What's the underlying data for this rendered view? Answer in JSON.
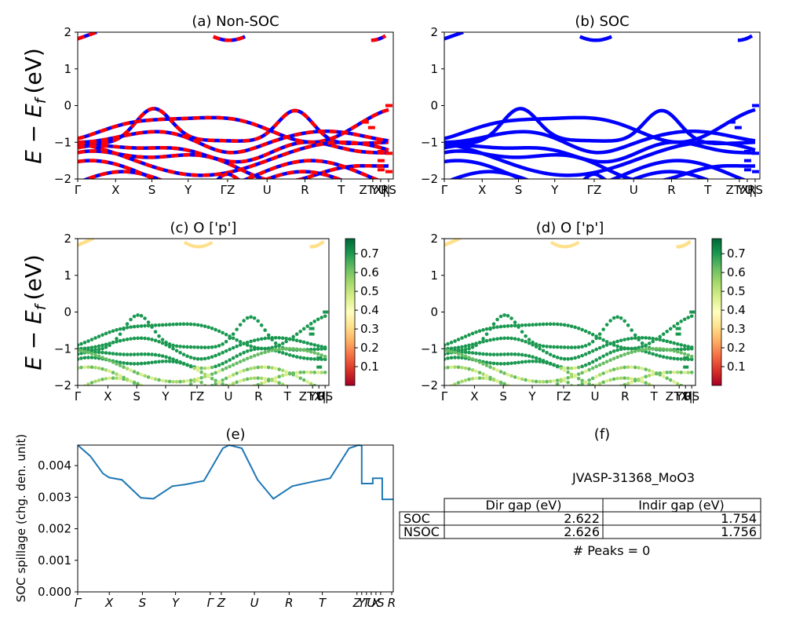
{
  "figure_id": "JVASP-31368_MoO3",
  "shared": {
    "ylabel": "E − E",
    "ylabel_sub": "f",
    "ylabel_unit": "(eV)",
    "band_yticks": [
      "2",
      "1",
      "0",
      "−1",
      "−2"
    ],
    "colorbar_ticks": [
      "0.7",
      "0.6",
      "0.5",
      "0.4",
      "0.3",
      "0.2",
      "0.1"
    ]
  },
  "chart_data": [
    {
      "panel": "a",
      "type": "line",
      "title": "(a) Non-SOC",
      "ylim": [
        -2,
        2
      ],
      "kpath_labels": [
        "Γ",
        "X",
        "S",
        "Y",
        "ΓZ",
        "U",
        "R",
        "T",
        "ZTX|",
        "YU|",
        "RS"
      ],
      "series": [
        {
          "color": "#ff0000",
          "style": "thick-dashed"
        },
        {
          "color": "#0000ff",
          "style": "thick"
        }
      ]
    },
    {
      "panel": "b",
      "type": "line",
      "title": "(b) SOC",
      "ylim": [
        -2,
        2
      ],
      "kpath_labels": [
        "Γ",
        "X",
        "S",
        "Y",
        "ΓZ",
        "U",
        "R",
        "T",
        "ZTX|",
        "YU|",
        "RS"
      ],
      "series": [
        {
          "color": "#0000ff",
          "style": "thick"
        }
      ]
    },
    {
      "panel": "c",
      "type": "scatter",
      "title": "(c)  O ['p']",
      "ylim": [
        -2,
        2
      ],
      "colormap": "RdYlGn",
      "clim": [
        0.0,
        0.78
      ],
      "kpath_labels": [
        "Γ",
        "X",
        "S",
        "Y",
        "ΓZ",
        "U",
        "R",
        "T",
        "ZTX|",
        "YU|",
        "RS"
      ]
    },
    {
      "panel": "d",
      "type": "scatter",
      "title": "(d) O ['p']",
      "ylim": [
        -2,
        2
      ],
      "colormap": "RdYlGn",
      "clim": [
        0.0,
        0.78
      ],
      "kpath_labels": [
        "Γ",
        "X",
        "S",
        "Y",
        "ΓZ",
        "U",
        "R",
        "T",
        "ZTX|",
        "YU|",
        "RS"
      ]
    },
    {
      "panel": "e",
      "type": "line",
      "title": "(e)",
      "ylabel": "SOC spillage (chg. den. unit)",
      "ylim": [
        0,
        0.00465
      ],
      "yticks": [
        "0.004",
        "0.003",
        "0.002",
        "0.001",
        "0.000"
      ],
      "kpath_labels": [
        "Γ",
        "X",
        "S",
        "Y",
        "Γ",
        "Z",
        "U",
        "R",
        "T",
        "Z",
        "Y",
        "T",
        "U",
        "X",
        "S",
        "R"
      ],
      "x": [
        0,
        0.04,
        0.08,
        0.1,
        0.14,
        0.2,
        0.24,
        0.3,
        0.34,
        0.4,
        0.46,
        0.48,
        0.52,
        0.57,
        0.62,
        0.68,
        0.74,
        0.8,
        0.86,
        0.89,
        0.9,
        0.9,
        0.93,
        0.935,
        0.935,
        0.965,
        0.965,
        0.99,
        1.0
      ],
      "values": [
        0.00465,
        0.0043,
        0.00375,
        0.00362,
        0.00355,
        0.00298,
        0.00295,
        0.00335,
        0.0034,
        0.00352,
        0.00455,
        0.00465,
        0.00455,
        0.00355,
        0.00295,
        0.00335,
        0.00348,
        0.0036,
        0.00455,
        0.00465,
        0.00463,
        0.00343,
        0.00343,
        0.00343,
        0.0036,
        0.0036,
        0.00293,
        0.00293,
        0.00293
      ],
      "series": [
        {
          "color": "#1f77b4"
        }
      ]
    },
    {
      "panel": "f",
      "type": "table",
      "title": "(f)",
      "caption": "JVASP-31368_MoO3",
      "columns": [
        "Dir gap (eV)",
        "Indir gap (eV)"
      ],
      "rows": [
        {
          "label": "SOC",
          "values": [
            "2.622",
            "1.754"
          ]
        },
        {
          "label": "NSOC",
          "values": [
            "2.626",
            "1.756"
          ]
        }
      ],
      "footer": "# Peaks = 0"
    }
  ]
}
